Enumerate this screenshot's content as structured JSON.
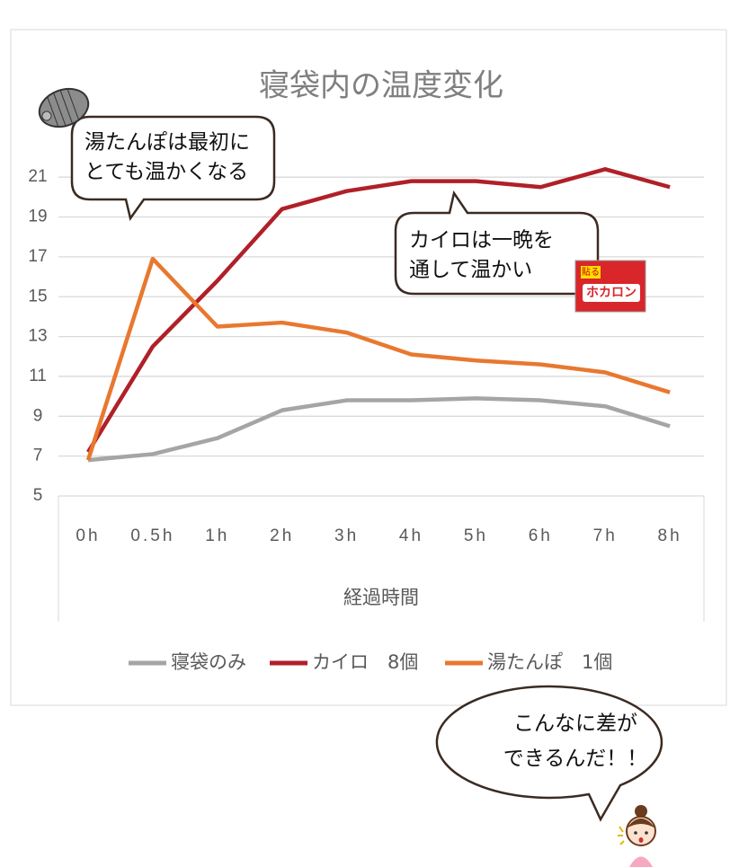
{
  "chart_data": {
    "type": "line",
    "title": "寝袋内の温度変化",
    "x_label": "経過時間",
    "categories": [
      "0h",
      "0.5h",
      "1h",
      "2h",
      "3h",
      "4h",
      "5h",
      "6h",
      "7h",
      "8h"
    ],
    "series": [
      {
        "name": "寝袋のみ",
        "color": "#a5a5a5",
        "values": [
          6.8,
          7.1,
          7.9,
          9.3,
          9.8,
          9.8,
          9.9,
          9.8,
          9.5,
          8.5
        ]
      },
      {
        "name": "カイロ　8個",
        "color": "#b02028",
        "values": [
          7.2,
          12.5,
          15.8,
          19.4,
          20.3,
          20.8,
          20.8,
          20.5,
          21.4,
          20.5
        ]
      },
      {
        "name": "湯たんぽ　1個",
        "color": "#e8782f",
        "values": [
          6.8,
          16.9,
          13.5,
          13.7,
          13.2,
          12.1,
          11.8,
          11.6,
          11.2,
          10.2
        ]
      }
    ],
    "ylim": [
      5,
      22
    ],
    "yticks": [
      5,
      7,
      9,
      11,
      13,
      15,
      17,
      19,
      21
    ],
    "grid": true,
    "legend": "bottom",
    "annotations": [
      {
        "lines": [
          "湯たんぽは最初に",
          "とても温かくなる"
        ]
      },
      {
        "lines": [
          "カイロは一晩を",
          "通して温かい"
        ]
      },
      {
        "lines": [
          "こんなに差が",
          "できるんだ！！"
        ]
      }
    ],
    "product_label": {
      "badge": "貼る",
      "name": "ホカロン"
    }
  }
}
